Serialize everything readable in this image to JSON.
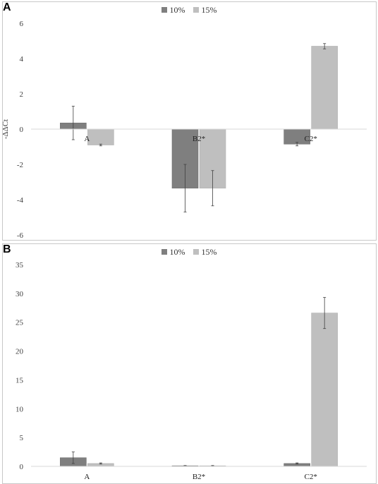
{
  "colors": {
    "s10": "#7f7f7f",
    "s15": "#bfbfbf",
    "axis": "#d9d9d9",
    "err": "#404040",
    "text": "#404040"
  },
  "chart_data": [
    {
      "panel_label": "A",
      "type": "bar",
      "categories": [
        "A",
        "B2*",
        "C2*"
      ],
      "series": [
        {
          "name": "10%",
          "values": [
            0.35,
            -3.35,
            -0.85
          ],
          "errors": [
            0.95,
            1.35,
            0.1
          ]
        },
        {
          "name": "15%",
          "values": [
            -0.9,
            -3.35,
            4.7
          ],
          "errors": [
            0.05,
            1.0,
            0.15
          ]
        }
      ],
      "ylabel": "-ΔΔCt",
      "ylim": [
        -6,
        6
      ],
      "yticks": [
        -6,
        -4,
        -2,
        0,
        2,
        4,
        6
      ],
      "grid": false,
      "legend": "top-center"
    },
    {
      "panel_label": "B",
      "type": "bar",
      "categories": [
        "A",
        "B2*",
        "C2*"
      ],
      "series": [
        {
          "name": "10%",
          "values": [
            1.5,
            0.1,
            0.5
          ],
          "errors": [
            1.0,
            0.05,
            0.1
          ]
        },
        {
          "name": "15%",
          "values": [
            0.5,
            0.1,
            26.6
          ],
          "errors": [
            0.1,
            0.05,
            2.7
          ]
        }
      ],
      "ylabel": "",
      "ylim": [
        0,
        35
      ],
      "yticks": [
        0,
        5,
        10,
        15,
        20,
        25,
        30,
        35
      ],
      "grid": false,
      "legend": "top-center"
    }
  ]
}
